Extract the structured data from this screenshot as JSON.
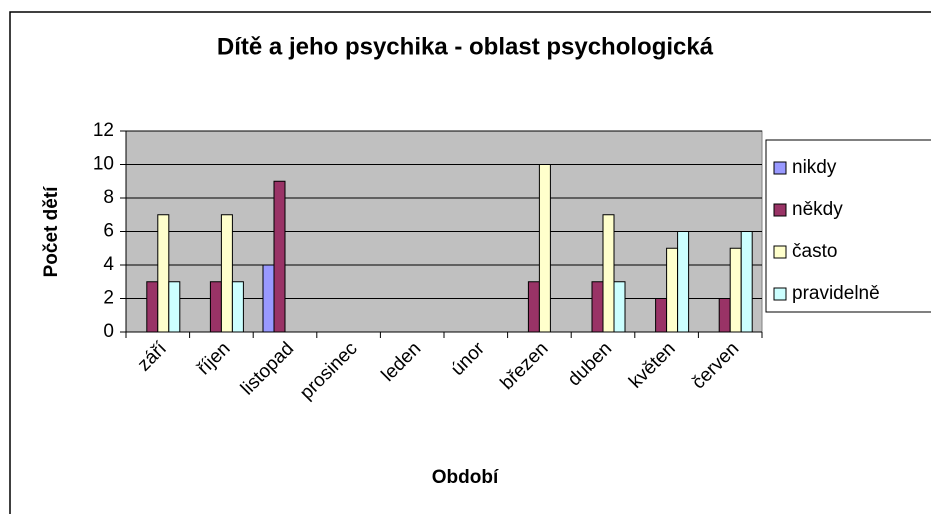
{
  "chart_data": {
    "type": "bar",
    "title": "Dítě a jeho psychika - oblast psychologická",
    "x_label": "Období",
    "y_label": "Počet dětí",
    "categories": [
      "září",
      "říjen",
      "listopad",
      "prosinec",
      "leden",
      "únor",
      "březen",
      "duben",
      "květen",
      "červen"
    ],
    "series": [
      {
        "name": "nikdy",
        "color": "#9999ff",
        "values": [
          0,
          0,
          4,
          0,
          0,
          0,
          0,
          0,
          0,
          0
        ]
      },
      {
        "name": "někdy",
        "color": "#993366",
        "values": [
          3,
          3,
          9,
          0,
          0,
          0,
          3,
          3,
          2,
          2
        ]
      },
      {
        "name": "často",
        "color": "#ffffcc",
        "values": [
          7,
          7,
          0,
          0,
          0,
          0,
          10,
          7,
          5,
          5
        ]
      },
      {
        "name": "pravidelně",
        "color": "#ccffff",
        "values": [
          3,
          3,
          0,
          0,
          0,
          0,
          0,
          3,
          6,
          6
        ]
      }
    ],
    "ylim": [
      0,
      12
    ],
    "yticks": [
      0,
      2,
      4,
      6,
      8,
      10,
      12
    ],
    "grid": true,
    "legend": "right"
  }
}
